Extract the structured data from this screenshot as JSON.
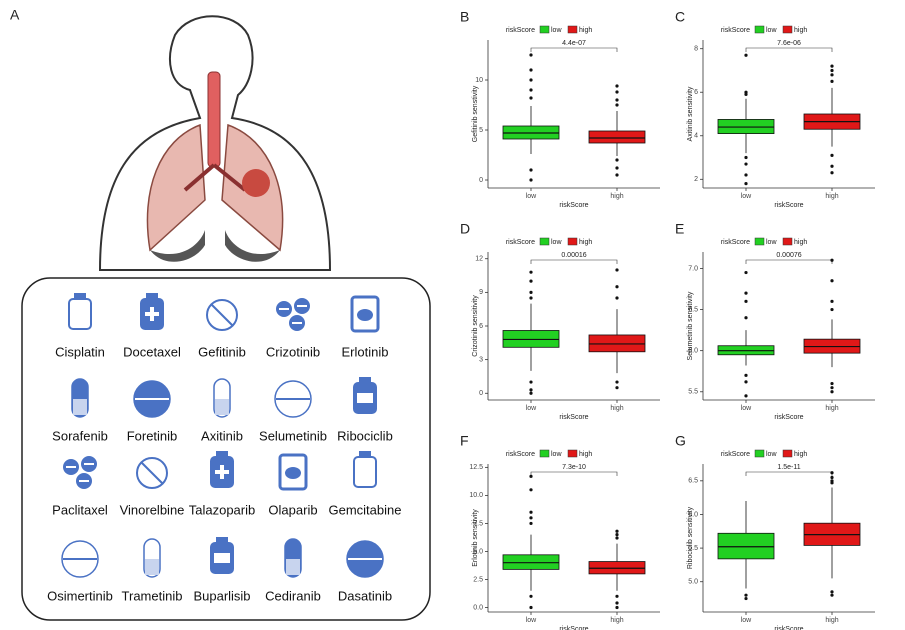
{
  "panel_a": {
    "panel": "A",
    "drugs": [
      "Cisplatin",
      "Docetaxel",
      "Gefitinib",
      "Crizotinib",
      "Erlotinib",
      "Sorafenib",
      "Foretinib",
      "Axitinib",
      "Selumetinib",
      "Ribociclib",
      "Paclitaxel",
      "Vinorelbine",
      "Talazoparib",
      "Olaparib",
      "Gemcitabine",
      "Osimertinib",
      "Trametinib",
      "Buparlisib",
      "Cediranib",
      "Dasatinib"
    ]
  },
  "chart_data": [
    {
      "type": "box",
      "panel": "B",
      "ylabel": "Gefitinib senstivity",
      "xlabel": "riskScore",
      "legend_title": "riskScore",
      "pvalue": "4.4e-07",
      "categories": [
        "low",
        "high"
      ],
      "ylim": [
        -0.8,
        14
      ],
      "yticks": [
        0,
        5,
        10
      ],
      "series": [
        {
          "name": "low",
          "color": "#22d022",
          "whisker_low": 2.6,
          "q1": 4.1,
          "median": 4.7,
          "q3": 5.4,
          "whisker_high": 7.4,
          "outliers": [
            12.5,
            11,
            10,
            9,
            8.2,
            1,
            0
          ]
        },
        {
          "name": "high",
          "color": "#e01818",
          "whisker_low": 2.4,
          "q1": 3.7,
          "median": 4.2,
          "q3": 4.9,
          "whisker_high": 6.9,
          "outliers": [
            9.4,
            8.8,
            8,
            7.5,
            2,
            1.2,
            0.5
          ]
        }
      ]
    },
    {
      "type": "box",
      "panel": "C",
      "ylabel": "Axitinib sensitivity",
      "xlabel": "riskScore",
      "legend_title": "riskScore",
      "pvalue": "7.6e-06",
      "categories": [
        "low",
        "high"
      ],
      "ylim": [
        1.6,
        8.4
      ],
      "yticks": [
        2,
        4,
        6,
        8
      ],
      "series": [
        {
          "name": "low",
          "color": "#22d022",
          "whisker_low": 3.2,
          "q1": 4.1,
          "median": 4.4,
          "q3": 4.75,
          "whisker_high": 5.7,
          "outliers": [
            7.7,
            6,
            5.9,
            3,
            2.7,
            2.2,
            1.8
          ]
        },
        {
          "name": "high",
          "color": "#e01818",
          "whisker_low": 3.5,
          "q1": 4.3,
          "median": 4.65,
          "q3": 5,
          "whisker_high": 6.2,
          "outliers": [
            7.2,
            7,
            6.8,
            6.5,
            3.1,
            2.6,
            2.3
          ]
        }
      ]
    },
    {
      "type": "box",
      "panel": "D",
      "ylabel": "Crizotinib sensitivity",
      "xlabel": "riskScore",
      "legend_title": "riskScore",
      "pvalue": "0.00016",
      "categories": [
        "low",
        "high"
      ],
      "ylim": [
        -0.6,
        12.6
      ],
      "yticks": [
        0,
        3,
        6,
        9,
        12
      ],
      "series": [
        {
          "name": "low",
          "color": "#22d022",
          "whisker_low": 2,
          "q1": 4.1,
          "median": 4.8,
          "q3": 5.6,
          "whisker_high": 8,
          "outliers": [
            10.8,
            10,
            9,
            8.5,
            1,
            0.3,
            0
          ]
        },
        {
          "name": "high",
          "color": "#e01818",
          "whisker_low": 1.8,
          "q1": 3.7,
          "median": 4.4,
          "q3": 5.2,
          "whisker_high": 7.5,
          "outliers": [
            11,
            9.5,
            8.5,
            1,
            0.5
          ]
        }
      ]
    },
    {
      "type": "box",
      "panel": "E",
      "ylabel": "Selumetinib sensitivity",
      "xlabel": "riskScore",
      "legend_title": "riskScore",
      "pvalue": "0.00076",
      "categories": [
        "low",
        "high"
      ],
      "ylim": [
        5.4,
        7.2
      ],
      "yticks": [
        5.5,
        {
          "value": 6,
          "label": "6.0"
        },
        6.5,
        {
          "value": 7,
          "label": "7.0"
        }
      ],
      "series": [
        {
          "name": "low",
          "color": "#22d022",
          "whisker_low": 5.82,
          "q1": 5.95,
          "median": 6,
          "q3": 6.06,
          "whisker_high": 6.25,
          "outliers": [
            6.95,
            6.7,
            6.6,
            6.4,
            5.7,
            5.62,
            5.45
          ]
        },
        {
          "name": "high",
          "color": "#e01818",
          "whisker_low": 5.8,
          "q1": 5.97,
          "median": 6.05,
          "q3": 6.14,
          "whisker_high": 6.38,
          "outliers": [
            7.1,
            6.85,
            6.6,
            6.5,
            5.6,
            5.55,
            5.5
          ]
        }
      ]
    },
    {
      "type": "box",
      "panel": "F",
      "ylabel": "Erlotinib sensitivity",
      "xlabel": "riskScore",
      "legend_title": "riskScore",
      "pvalue": "7.3e-10",
      "categories": [
        "low",
        "high"
      ],
      "ylim": [
        -0.4,
        12.8
      ],
      "yticks": [
        {
          "value": 0,
          "label": "0.0"
        },
        2.5,
        {
          "value": 5,
          "label": "5.0"
        },
        7.5,
        {
          "value": 10,
          "label": "10.0"
        },
        12.5
      ],
      "series": [
        {
          "name": "low",
          "color": "#22d022",
          "whisker_low": 1.5,
          "q1": 3.4,
          "median": 4,
          "q3": 4.7,
          "whisker_high": 6.5,
          "outliers": [
            11.7,
            10.5,
            8.5,
            8,
            7.5,
            1,
            0
          ]
        },
        {
          "name": "high",
          "color": "#e01818",
          "whisker_low": 1.5,
          "q1": 3,
          "median": 3.5,
          "q3": 4.1,
          "whisker_high": 5.7,
          "outliers": [
            6.8,
            6.5,
            6.2,
            1,
            0.4,
            0
          ]
        }
      ]
    },
    {
      "type": "box",
      "panel": "G",
      "ylabel": "Ribociclib sensitivity",
      "xlabel": "riskScore",
      "legend_title": "riskScore",
      "pvalue": "1.5e-11",
      "categories": [
        "low",
        "high"
      ],
      "ylim": [
        4.55,
        6.75
      ],
      "yticks": [
        {
          "value": 5,
          "label": "5.0"
        },
        5.5,
        {
          "value": 6,
          "label": "6.0"
        },
        6.5
      ],
      "series": [
        {
          "name": "low",
          "color": "#22d022",
          "whisker_low": 4.9,
          "q1": 5.34,
          "median": 5.52,
          "q3": 5.72,
          "whisker_high": 6.2,
          "outliers": [
            4.8,
            4.75
          ]
        },
        {
          "name": "high",
          "color": "#e01818",
          "whisker_low": 5.05,
          "q1": 5.54,
          "median": 5.7,
          "q3": 5.87,
          "whisker_high": 6.4,
          "outliers": [
            6.62,
            6.55,
            6.5,
            6.47,
            4.85,
            4.8
          ]
        }
      ]
    }
  ]
}
